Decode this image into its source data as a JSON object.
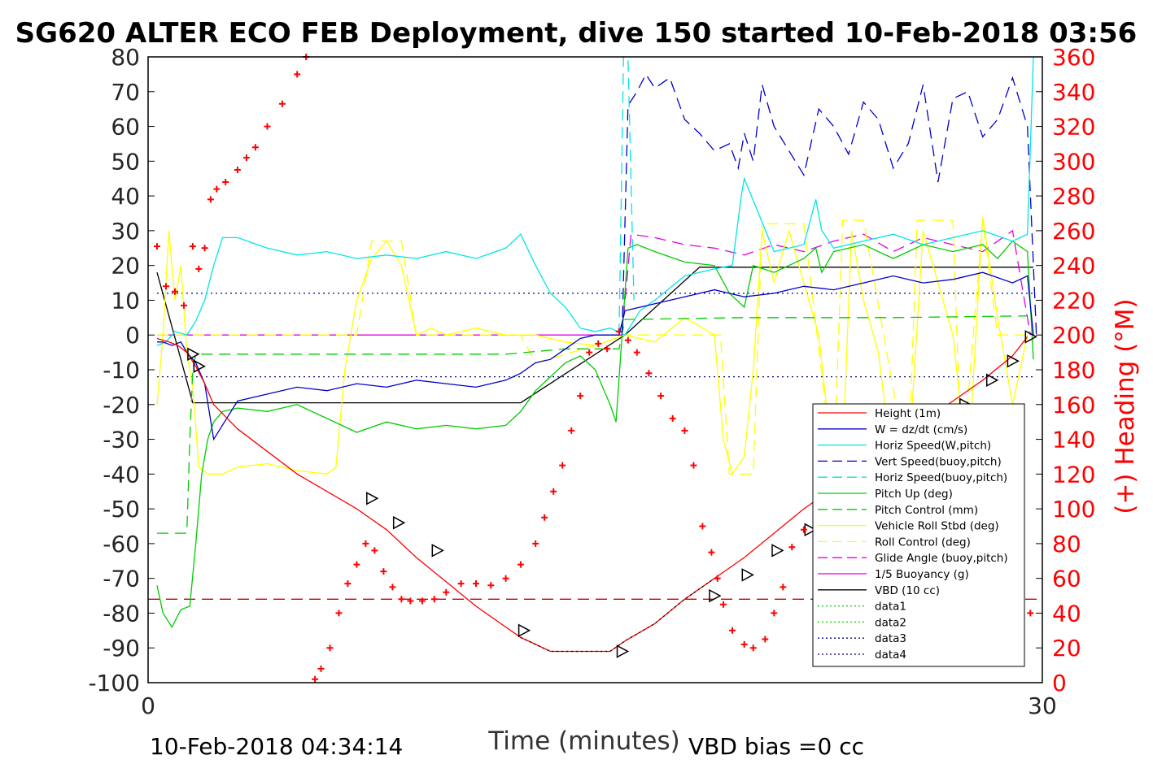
{
  "chart_data": {
    "type": "line",
    "title": "SG620 ALTER ECO FEB Deployment, dive 150 started 10-Feb-2018 03:56",
    "xlabel": "Time (minutes)",
    "ylabel_right": "(+) Heading (°M)",
    "xlim": [
      0,
      30
    ],
    "ylim": [
      -100,
      80
    ],
    "ylim_right": [
      0,
      360
    ],
    "x_ticks": [
      "0",
      "30"
    ],
    "y_ticks": [
      "80",
      "70",
      "60",
      "50",
      "40",
      "30",
      "20",
      "10",
      "0",
      "-10",
      "-20",
      "-30",
      "-40",
      "-50",
      "-60",
      "-70",
      "-80",
      "-90",
      "-100"
    ],
    "y_right_ticks": [
      "360",
      "340",
      "320",
      "300",
      "280",
      "260",
      "240",
      "220",
      "200",
      "180",
      "160",
      "140",
      "120",
      "100",
      "80",
      "60",
      "40",
      "20",
      "0"
    ],
    "footer_left": "10-Feb-2018 04:34:14",
    "footer_right": "VBD bias =0 cc",
    "legend_position": "lower-right",
    "colors": {
      "height": "#ff0000",
      "w": "#0000cc",
      "horiz": "#00e5e5",
      "vert_buoy": "#0000cc",
      "horiz_buoy": "#00e5e5",
      "pitch": "#00cc00",
      "pitch_ctl": "#00cc00",
      "roll": "#ffff00",
      "roll_ctl": "#ffff00",
      "glide": "#e000e0",
      "buoy": "#e000e0",
      "vbd": "#000000",
      "heading": "#ff0000",
      "right_axis": "#ff0000"
    },
    "series": [
      {
        "key": "height",
        "name": "Height (1m)",
        "color": "#ff0000",
        "style": "solid",
        "x": [
          0.3,
          0.7,
          1.0,
          1.3,
          1.6,
          1.9,
          2.2,
          3,
          5,
          7,
          8,
          9,
          10,
          11,
          12,
          12.5,
          13,
          13.5,
          14,
          14.5,
          15,
          15.5,
          16,
          17,
          18,
          19,
          20,
          21,
          22,
          23,
          24,
          25,
          26,
          27,
          28,
          29,
          29.5
        ],
        "y": [
          -1,
          -2,
          -3,
          -5,
          -9,
          -14,
          -20,
          -27,
          -40,
          -50,
          -56,
          -64,
          -71,
          -78,
          -84,
          -87,
          -89,
          -91,
          -91,
          -91,
          -91,
          -91,
          -88,
          -83,
          -76,
          -70,
          -64,
          -57,
          -50,
          -44,
          -38,
          -32,
          -25,
          -19,
          -13,
          -6,
          -0.5
        ]
      },
      {
        "key": "w",
        "name": "W = dz/dt (cm/s)",
        "color": "#0000cc",
        "style": "solid",
        "x": [
          0.3,
          0.5,
          0.8,
          1.1,
          1.3,
          1.6,
          1.9,
          2.2,
          3,
          4,
          5,
          6,
          7,
          8,
          9,
          10,
          11,
          12,
          12.5,
          13,
          13.5,
          14,
          14.5,
          15,
          15.5,
          15.8,
          16,
          17,
          18,
          19,
          20,
          21,
          22,
          23,
          24,
          25,
          26,
          27,
          28,
          29,
          29.5,
          29.7
        ],
        "y": [
          -2,
          -2,
          -3,
          -2,
          -5,
          -8,
          -14,
          -30,
          -19,
          -17,
          -15,
          -16,
          -14,
          -15,
          -13,
          -14,
          -15,
          -13,
          -11,
          -8,
          -7,
          -4,
          -1,
          0,
          0,
          0,
          7,
          9,
          11,
          13,
          11,
          12,
          14,
          13,
          15,
          17,
          15,
          16,
          18,
          15,
          17,
          0
        ]
      },
      {
        "key": "horiz",
        "name": "Horiz Speed(W,pitch)",
        "color": "#00e5e5",
        "style": "solid",
        "x": [
          0.3,
          0.6,
          0.9,
          1.3,
          1.6,
          1.9,
          2.2,
          2.5,
          3,
          4,
          5,
          6,
          7,
          8,
          9,
          10,
          11,
          12,
          12.5,
          13,
          13.5,
          14,
          14.5,
          15,
          15.5,
          16,
          16.5,
          17,
          18,
          19,
          19.6,
          19.9,
          20,
          21,
          22,
          22.4,
          22.6,
          23,
          24,
          25,
          26,
          27,
          28,
          29,
          29.5,
          29.7
        ],
        "y": [
          -3,
          -2,
          1,
          0,
          4,
          10,
          20,
          28,
          28,
          25,
          23,
          24,
          22,
          23,
          22,
          24,
          22,
          25,
          29,
          20,
          12,
          8,
          2,
          1,
          2,
          0,
          7,
          10,
          17,
          19,
          20,
          40,
          45,
          24,
          26,
          39,
          30,
          25,
          27,
          29,
          26,
          28,
          30,
          27,
          29,
          80
        ]
      },
      {
        "key": "vert_buoy",
        "name": "Vert Speed(buoy,pitch)",
        "color": "#0000cc",
        "style": "dashed",
        "x": [
          15.9,
          16.1,
          16.4,
          16.7,
          17,
          17.5,
          18,
          18.5,
          19,
          19.5,
          19.8,
          20,
          20.3,
          20.6,
          21,
          21.5,
          22,
          22.5,
          23,
          23.5,
          24,
          24.5,
          25,
          25.5,
          26,
          26.5,
          27,
          27.5,
          28,
          28.5,
          29,
          29.5,
          29.8
        ],
        "y": [
          0,
          66,
          70,
          75,
          71,
          74,
          62,
          58,
          53,
          55,
          48,
          58,
          50,
          72,
          60,
          53,
          46,
          65,
          60,
          52,
          67,
          62,
          48,
          55,
          72,
          44,
          68,
          70,
          57,
          62,
          74,
          60,
          0
        ]
      },
      {
        "key": "horiz_buoy",
        "name": "Horiz Speed(buoy,pitch)",
        "color": "#00e5e5",
        "style": "dashed",
        "x": [
          15.8,
          15.95,
          16.1,
          16.3
        ],
        "y": [
          0,
          80,
          80,
          10
        ]
      },
      {
        "key": "pitch",
        "name": "Pitch Up (deg)",
        "color": "#00cc00",
        "style": "solid",
        "x": [
          0.3,
          0.5,
          0.8,
          1.1,
          1.4,
          1.6,
          1.8,
          2.0,
          2.2,
          2.5,
          3,
          4,
          5,
          6,
          7,
          8,
          9,
          10,
          11,
          12,
          12.5,
          13,
          13.5,
          14,
          14.5,
          15,
          15.5,
          15.7,
          15.9,
          16.1,
          16.4,
          17,
          18,
          19,
          19.5,
          20,
          20.3,
          21,
          22,
          22.4,
          22.6,
          23,
          24,
          25,
          26,
          27,
          28,
          28.5,
          29,
          29.5,
          29.7
        ],
        "y": [
          -72,
          -80,
          -84,
          -79,
          -78,
          -60,
          -40,
          -30,
          -25,
          -22,
          -21,
          -22,
          -20,
          -24,
          -28,
          -25,
          -27,
          -26,
          -27,
          -26,
          -22,
          -16,
          -12,
          -8,
          -6,
          -10,
          -20,
          -25,
          0,
          25,
          26,
          24,
          21,
          20,
          12,
          8,
          20,
          18,
          22,
          25,
          18,
          24,
          26,
          22,
          26,
          24,
          26,
          22,
          27,
          24,
          -7
        ]
      },
      {
        "key": "pitch_ctl",
        "name": "Pitch Control (mm)",
        "color": "#00cc00",
        "style": "dashed",
        "x": [
          0.3,
          1.1,
          1.3,
          1.4,
          1.5,
          1.6,
          3,
          8,
          12,
          14,
          15.8,
          16,
          16.3,
          20,
          25,
          29.5
        ],
        "y": [
          -57,
          -57,
          -57,
          -30,
          -10,
          -5.5,
          -5.5,
          -5.5,
          -5.5,
          -4,
          -4,
          4.5,
          4.5,
          5,
          5,
          5.5
        ]
      },
      {
        "key": "roll",
        "name": "Vehicle Roll Stbd (deg)",
        "color": "#ffff00",
        "style": "solid",
        "x": [
          0.3,
          0.5,
          0.7,
          0.9,
          1.1,
          1.3,
          1.5,
          1.7,
          2.0,
          2.5,
          3,
          4,
          5,
          6,
          6.3,
          6.6,
          7,
          7.5,
          8,
          8.5,
          9,
          9.5,
          10,
          11,
          12,
          13,
          14,
          15,
          16,
          17,
          18,
          19,
          19.3,
          19.6,
          20,
          20.3,
          20.6,
          21,
          21.5,
          22,
          22.5,
          23,
          23.3,
          23.6,
          24,
          24.5,
          25,
          25.5,
          26,
          26.5,
          27,
          27.5,
          28,
          28.5,
          29,
          29.5
        ],
        "y": [
          -20,
          0,
          30,
          10,
          20,
          -5,
          -15,
          -38,
          -40,
          -40,
          -38,
          -37,
          -39,
          -40,
          -38,
          -10,
          10,
          22,
          27,
          20,
          0,
          2,
          0,
          2,
          0,
          0,
          -2,
          -3,
          0,
          -2,
          5,
          0,
          -30,
          -40,
          -35,
          -10,
          30,
          15,
          30,
          15,
          0,
          -40,
          -35,
          30,
          10,
          -5,
          -40,
          -38,
          30,
          15,
          0,
          -40,
          34,
          5,
          -20,
          0
        ]
      },
      {
        "key": "roll_ctl",
        "name": "Roll Control (deg)",
        "color": "#ffff00",
        "style": "dashed",
        "x": [
          0.3,
          0.8,
          1.0,
          1.5,
          5,
          7,
          7.5,
          8.5,
          9,
          11,
          12.5,
          13,
          15,
          16,
          18,
          19.2,
          19.5,
          20.3,
          20.6,
          22,
          23,
          23.3,
          24,
          25.5,
          25.8,
          27,
          27.3,
          28,
          28.5,
          29.5
        ],
        "y": [
          0,
          0,
          0,
          0,
          0,
          0,
          27,
          27,
          0,
          0,
          0,
          -8,
          -3,
          0,
          0,
          0,
          -40,
          -40,
          32,
          32,
          -40,
          33,
          33,
          -40,
          33,
          33,
          -40,
          33,
          0,
          0
        ]
      },
      {
        "key": "glide",
        "name": "Glide Angle (buoy,pitch)",
        "color": "#e000e0",
        "style": "dashed",
        "x": [
          15.9,
          16.2,
          17,
          18,
          19,
          20,
          21,
          22,
          23,
          24,
          25,
          26,
          27,
          28,
          29,
          29.6
        ],
        "y": [
          0,
          29,
          28,
          26,
          25,
          23,
          26,
          24,
          27,
          29,
          24,
          28,
          26,
          24,
          30,
          0
        ]
      },
      {
        "key": "buoy",
        "name": "1/5 Buoyancy (g)",
        "color": "#e000e0",
        "style": "solid",
        "x": [
          0.3,
          15.9
        ],
        "y": [
          0,
          0
        ]
      },
      {
        "key": "vbd",
        "name": "VBD (10 cc)",
        "color": "#000000",
        "style": "solid",
        "x": [
          0.3,
          1.5,
          12.5,
          16,
          18.5,
          29.7
        ],
        "y": [
          18,
          -19.5,
          -19.5,
          0,
          19.5,
          19.5
        ]
      },
      {
        "key": "data1",
        "name": "data1",
        "color": "#00cc00",
        "style": "dotted",
        "x": [],
        "y": []
      },
      {
        "key": "data2",
        "name": "data2",
        "color": "#00cc00",
        "style": "dotted",
        "x": [],
        "y": []
      },
      {
        "key": "data3",
        "name": "data3",
        "color": "#000080",
        "style": "dotted",
        "x": [
          0.3,
          29.7
        ],
        "y": [
          12,
          12
        ]
      },
      {
        "key": "data4",
        "name": "data4",
        "color": "#000080",
        "style": "dotted",
        "x": [
          0.3,
          29.7
        ],
        "y": [
          -12,
          -12
        ]
      }
    ],
    "reference_line": {
      "color": "#cc0000",
      "style": "dashed",
      "y": -76
    },
    "markers_height": {
      "x": [
        1.5,
        1.7,
        7.5,
        8.4,
        9.7,
        12.6,
        15.9,
        19,
        20.1,
        21.1,
        22.2,
        23.1,
        23.8,
        24.8,
        25.7,
        26.7,
        27.4,
        28.3,
        29.0,
        29.6
      ],
      "y": [
        -5.5,
        -9,
        -47,
        -54,
        -62,
        -85,
        -91,
        -75,
        -69,
        -62,
        -56,
        -50,
        -45,
        -38,
        -32,
        -25,
        -20,
        -13,
        -7.5,
        -0.5
      ]
    },
    "heading": {
      "name": "Heading",
      "color": "#ff0000",
      "axis": "right",
      "x": [
        0.3,
        0.6,
        0.9,
        1.2,
        1.5,
        1.7,
        1.9,
        2.1,
        2.3,
        2.6,
        3.0,
        3.3,
        3.6,
        4.0,
        4.5,
        5.0,
        5.3,
        5.5,
        5.6,
        5.8,
        6.1,
        6.4,
        6.7,
        7.0,
        7.3,
        7.6,
        7.9,
        8.2,
        8.5,
        8.8,
        9.2,
        9.6,
        10.0,
        10.5,
        11.0,
        11.5,
        12.0,
        12.5,
        13.0,
        13.3,
        13.6,
        13.9,
        14.2,
        14.5,
        14.8,
        15.1,
        15.4,
        15.8,
        16.1,
        16.4,
        16.8,
        17.2,
        17.6,
        18.0,
        18.3,
        18.6,
        18.9,
        19.1,
        19.3,
        19.6,
        20.0,
        20.3,
        20.7,
        21.0,
        21.3,
        21.6,
        22.0,
        22.4,
        22.8,
        23.2,
        23.6,
        24.0,
        24.3,
        24.6,
        25.0,
        25.3,
        25.6,
        26.0,
        26.3,
        26.6,
        27.0,
        27.3,
        27.6,
        28.0,
        28.3,
        28.6,
        29.0,
        29.3,
        29.6
      ],
      "y": [
        251,
        228,
        225,
        217,
        251,
        238,
        250,
        278,
        284,
        288,
        295,
        302,
        308,
        320,
        333,
        350,
        360,
        362,
        2,
        8,
        20,
        40,
        57,
        68,
        80,
        76,
        64,
        55,
        48,
        47,
        47,
        48,
        52,
        57,
        57,
        56,
        60,
        68,
        80,
        95,
        110,
        125,
        145,
        165,
        190,
        195,
        192,
        202,
        197,
        190,
        178,
        165,
        152,
        145,
        125,
        90,
        75,
        60,
        45,
        30,
        22,
        20,
        25,
        40,
        55,
        78,
        88,
        70,
        50,
        40,
        30,
        25,
        25,
        40,
        55,
        70,
        72,
        73,
        70,
        60,
        50,
        35,
        25,
        25,
        22,
        25,
        28,
        35,
        40
      ]
    }
  },
  "legend": {
    "items": [
      {
        "key": "height",
        "label": "Height (1m)"
      },
      {
        "key": "w",
        "label": "W = dz/dt (cm/s)"
      },
      {
        "key": "horiz",
        "label": "Horiz Speed(W,pitch)"
      },
      {
        "key": "vert_buoy",
        "label": "Vert Speed(buoy,pitch)"
      },
      {
        "key": "horiz_buoy",
        "label": "Horiz Speed(buoy,pitch)"
      },
      {
        "key": "pitch",
        "label": "Pitch Up (deg)"
      },
      {
        "key": "pitch_ctl",
        "label": "Pitch Control (mm)"
      },
      {
        "key": "roll",
        "label": "Vehicle Roll Stbd (deg)"
      },
      {
        "key": "roll_ctl",
        "label": "Roll Control (deg)"
      },
      {
        "key": "glide",
        "label": "Glide Angle (buoy,pitch)"
      },
      {
        "key": "buoy",
        "label": "1/5 Buoyancy (g)"
      },
      {
        "key": "vbd",
        "label": "VBD (10 cc)"
      },
      {
        "key": "data1",
        "label": "data1"
      },
      {
        "key": "data2",
        "label": "data2"
      },
      {
        "key": "data3",
        "label": "data3"
      },
      {
        "key": "data4",
        "label": "data4"
      }
    ]
  }
}
